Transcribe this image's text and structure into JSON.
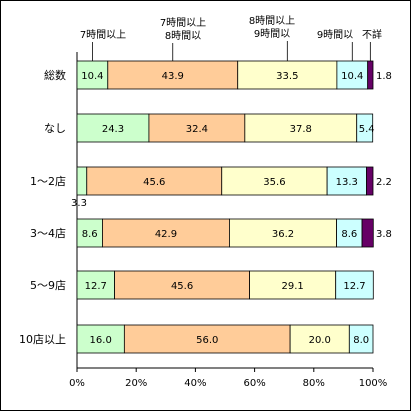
{
  "chart_data": {
    "type": "bar",
    "orientation": "horizontal",
    "stacked": true,
    "percent": true,
    "categories": [
      "総数",
      "なし",
      "1～2店",
      "3～4店",
      "5～9店",
      "10店以上"
    ],
    "series": [
      {
        "name": "7時間以上",
        "color": "#ccffcc",
        "values": [
          10.4,
          24.3,
          3.3,
          8.6,
          12.7,
          16.0
        ],
        "labels": [
          "10.4",
          "24.3",
          "3.3",
          "8.6",
          "12.7",
          "16.0"
        ]
      },
      {
        "name": "7時間以上 8時間以",
        "name_lines": [
          "7時間以上",
          "8時間以"
        ],
        "color": "#ffcc99",
        "values": [
          43.9,
          32.4,
          45.6,
          42.9,
          45.6,
          56.0
        ],
        "labels": [
          "43.9",
          "32.4",
          "45.6",
          "42.9",
          "45.6",
          "56.0"
        ]
      },
      {
        "name": "8時間以上 9時間以",
        "name_lines": [
          "8時間以上",
          "9時間以"
        ],
        "color": "#ffffcc",
        "values": [
          33.5,
          37.8,
          35.6,
          36.2,
          29.1,
          20.0
        ],
        "labels": [
          "33.5",
          "37.8",
          "35.6",
          "36.2",
          "29.1",
          "20.0"
        ]
      },
      {
        "name": "9時間以",
        "color": "#ccffff",
        "values": [
          10.4,
          5.4,
          13.3,
          8.6,
          12.7,
          8.0
        ],
        "labels": [
          "10.4",
          "5.4",
          "13.3",
          "8.6",
          "12.7",
          "8.0"
        ]
      },
      {
        "name": "不詳",
        "color": "#660066",
        "values": [
          1.8,
          0,
          2.2,
          3.8,
          0,
          0
        ],
        "labels": [
          "1.8",
          "",
          "2.2",
          "3.8",
          "",
          ""
        ]
      }
    ],
    "xlim": [
      0,
      100
    ],
    "x_ticks": [
      "0%",
      "20%",
      "40%",
      "60%",
      "80%",
      "100%"
    ],
    "grid": false,
    "legend": "top"
  }
}
